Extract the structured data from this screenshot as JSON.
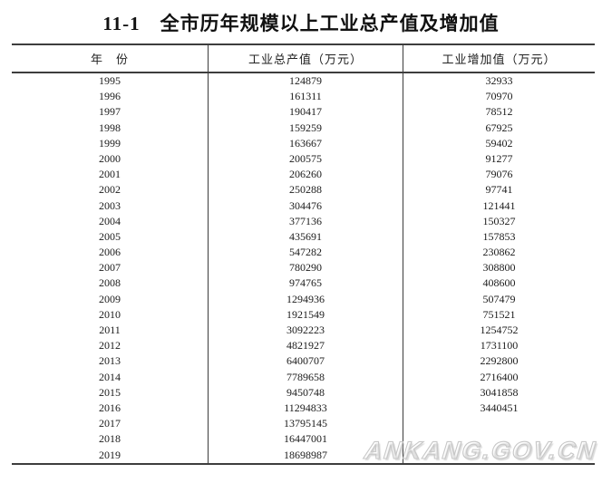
{
  "title": "11-1　全市历年规模以上工业总产值及增加值",
  "watermark": "ANKANG.GOV.CN",
  "table": {
    "columns": [
      "年　份",
      "工业总产值（万元）",
      "工业增加值（万元）"
    ],
    "rows": [
      [
        "1995",
        "124879",
        "32933"
      ],
      [
        "1996",
        "161311",
        "70970"
      ],
      [
        "1997",
        "190417",
        "78512"
      ],
      [
        "1998",
        "159259",
        "67925"
      ],
      [
        "1999",
        "163667",
        "59402"
      ],
      [
        "2000",
        "200575",
        "91277"
      ],
      [
        "2001",
        "206260",
        "79076"
      ],
      [
        "2002",
        "250288",
        "97741"
      ],
      [
        "2003",
        "304476",
        "121441"
      ],
      [
        "2004",
        "377136",
        "150327"
      ],
      [
        "2005",
        "435691",
        "157853"
      ],
      [
        "2006",
        "547282",
        "230862"
      ],
      [
        "2007",
        "780290",
        "308800"
      ],
      [
        "2008",
        "974765",
        "408600"
      ],
      [
        "2009",
        "1294936",
        "507479"
      ],
      [
        "2010",
        "1921549",
        "751521"
      ],
      [
        "2011",
        "3092223",
        "1254752"
      ],
      [
        "2012",
        "4821927",
        "1731100"
      ],
      [
        "2013",
        "6400707",
        "2292800"
      ],
      [
        "2014",
        "7789658",
        "2716400"
      ],
      [
        "2015",
        "9450748",
        "3041858"
      ],
      [
        "2016",
        "11294833",
        "3440451"
      ],
      [
        "2017",
        "13795145",
        ""
      ],
      [
        "2018",
        "16447001",
        ""
      ],
      [
        "2019",
        "18698987",
        ""
      ]
    ]
  },
  "colors": {
    "rule": "#3d3d3d",
    "text": "#1b1b1b",
    "watermark_outline": "#c7c7c7"
  }
}
